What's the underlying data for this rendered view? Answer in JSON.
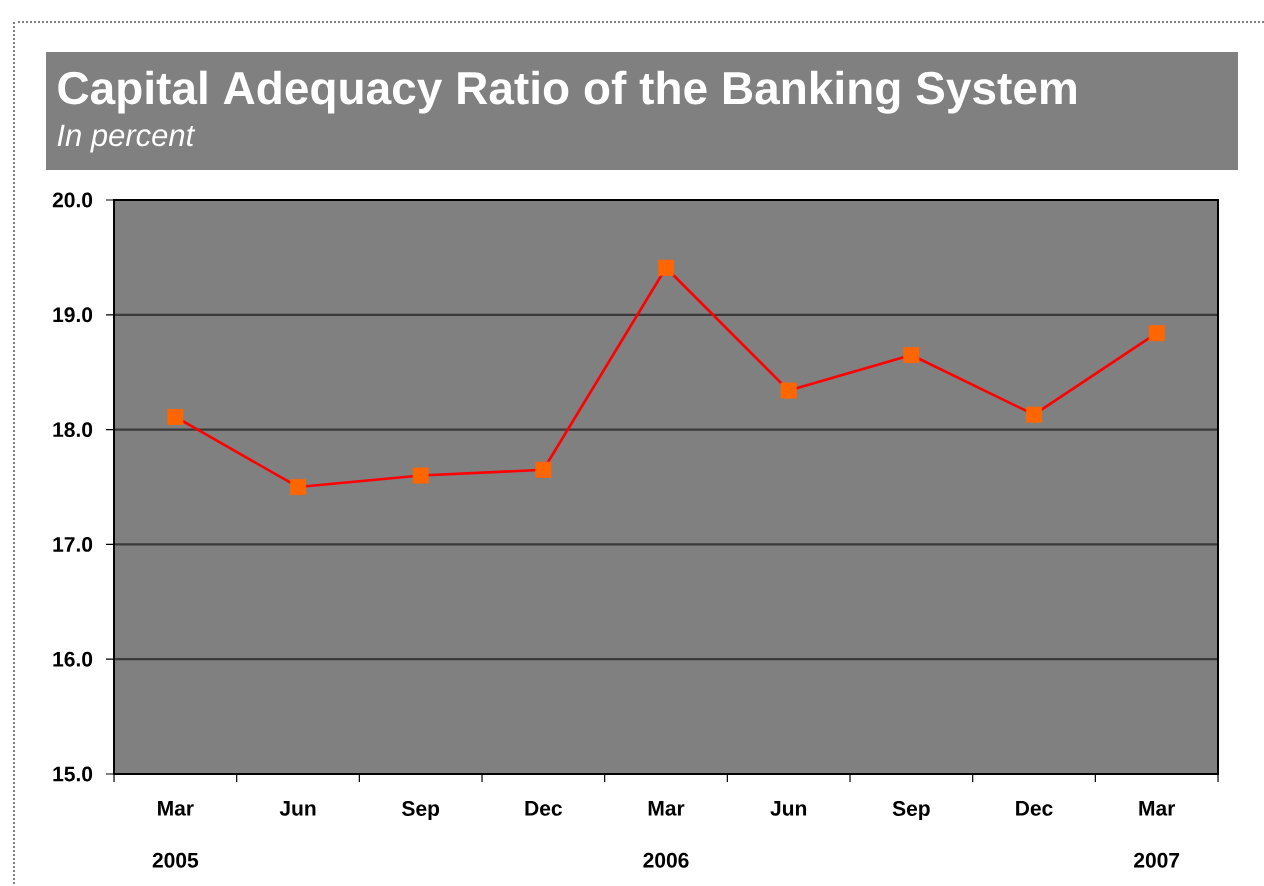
{
  "chart_data": {
    "type": "line",
    "title": "Capital Adequacy Ratio of the Banking System",
    "subtitle": "In percent",
    "categories": [
      "Mar 2005",
      "Jun",
      "Sep",
      "Dec",
      "Mar 2006",
      "Jun",
      "Sep",
      "Dec",
      "Mar 2007"
    ],
    "series": [
      {
        "color": "#ff0000",
        "colors": [
          "#ff6600",
          "#ff6600",
          "#ff6600",
          "#ff6600",
          "#ff6600",
          "#ff6600",
          "#ff6600",
          "#ff6600",
          "#ff6600"
        ],
        "values": [
          18.11,
          17.5,
          17.6,
          17.65,
          19.41,
          18.34,
          18.65,
          18.13,
          18.84
        ]
      }
    ],
    "marker": "square",
    "grid": "y",
    "ylim": [
      15,
      20
    ],
    "yticks": [
      {
        "value": 15,
        "label": "15.0"
      },
      {
        "value": 16,
        "label": "16.0"
      },
      {
        "value": 17,
        "label": "17.0"
      },
      {
        "value": 18,
        "label": "18.0"
      },
      {
        "value": 19,
        "label": "19.0"
      },
      {
        "value": 20,
        "label": "20.0"
      }
    ]
  }
}
